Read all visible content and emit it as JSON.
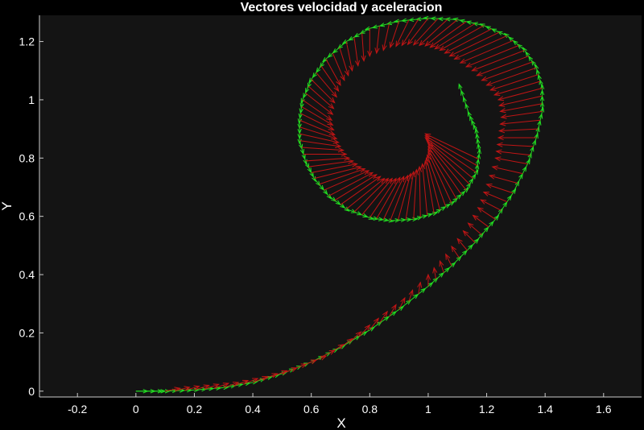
{
  "chart_data": {
    "type": "quiver",
    "title": "Vectores velocidad y aceleracion",
    "xlabel": "X",
    "ylabel": "Y",
    "xlim": [
      -0.33,
      1.73
    ],
    "ylim": [
      -0.02,
      1.29
    ],
    "xticks": [
      -0.2,
      0,
      0.2,
      0.4,
      0.6,
      0.8,
      1,
      1.2,
      1.4,
      1.6
    ],
    "yticks": [
      0,
      0.2,
      0.4,
      0.6,
      0.8,
      1,
      1.2
    ],
    "grid": false,
    "background": "#000000",
    "plot_background": "#141414",
    "series": [
      {
        "kind": "velocity",
        "color": "#22dd22",
        "points": [
          [
            0.0,
            0.0
          ],
          [
            0.1,
            0.0
          ],
          [
            0.2,
            0.004
          ],
          [
            0.3,
            0.012
          ],
          [
            0.4,
            0.03
          ],
          [
            0.5,
            0.06
          ],
          [
            0.6,
            0.1
          ],
          [
            0.7,
            0.15
          ],
          [
            0.8,
            0.21
          ],
          [
            0.9,
            0.28
          ],
          [
            1.0,
            0.36
          ],
          [
            1.08,
            0.43
          ],
          [
            1.16,
            0.51
          ],
          [
            1.23,
            0.59
          ],
          [
            1.29,
            0.68
          ],
          [
            1.34,
            0.78
          ],
          [
            1.37,
            0.87
          ],
          [
            1.39,
            0.96
          ],
          [
            1.39,
            1.04
          ],
          [
            1.37,
            1.11
          ],
          [
            1.33,
            1.17
          ],
          [
            1.27,
            1.22
          ],
          [
            1.19,
            1.255
          ],
          [
            1.1,
            1.275
          ],
          [
            1.0,
            1.28
          ],
          [
            0.9,
            1.27
          ],
          [
            0.8,
            1.245
          ],
          [
            0.72,
            1.2
          ],
          [
            0.65,
            1.14
          ],
          [
            0.6,
            1.07
          ],
          [
            0.57,
            1.0
          ],
          [
            0.56,
            0.93
          ],
          [
            0.56,
            0.86
          ],
          [
            0.58,
            0.79
          ],
          [
            0.61,
            0.73
          ],
          [
            0.66,
            0.67
          ],
          [
            0.72,
            0.625
          ],
          [
            0.8,
            0.595
          ],
          [
            0.87,
            0.585
          ],
          [
            0.95,
            0.59
          ],
          [
            1.02,
            0.61
          ],
          [
            1.08,
            0.645
          ],
          [
            1.13,
            0.69
          ],
          [
            1.165,
            0.75
          ],
          [
            1.175,
            0.82
          ],
          [
            1.165,
            0.89
          ],
          [
            1.14,
            0.95
          ],
          [
            1.11,
            1.04
          ]
        ]
      },
      {
        "kind": "acceleration",
        "color": "#c01515",
        "base": [
          [
            0.1,
            0.0
          ],
          [
            0.2,
            0.004
          ],
          [
            0.3,
            0.012
          ],
          [
            0.4,
            0.03
          ],
          [
            0.5,
            0.06
          ],
          [
            0.6,
            0.1
          ],
          [
            0.7,
            0.15
          ],
          [
            0.8,
            0.21
          ],
          [
            0.9,
            0.28
          ],
          [
            1.0,
            0.36
          ],
          [
            1.08,
            0.43
          ],
          [
            1.16,
            0.51
          ],
          [
            1.23,
            0.59
          ],
          [
            1.29,
            0.68
          ],
          [
            1.34,
            0.78
          ],
          [
            1.37,
            0.87
          ],
          [
            1.39,
            0.96
          ],
          [
            1.39,
            1.04
          ],
          [
            1.37,
            1.11
          ],
          [
            1.33,
            1.17
          ],
          [
            1.27,
            1.22
          ],
          [
            1.19,
            1.255
          ],
          [
            1.1,
            1.275
          ],
          [
            1.0,
            1.28
          ],
          [
            0.9,
            1.27
          ],
          [
            0.8,
            1.245
          ],
          [
            0.72,
            1.2
          ],
          [
            0.65,
            1.14
          ],
          [
            0.6,
            1.07
          ],
          [
            0.57,
            1.0
          ],
          [
            0.56,
            0.93
          ],
          [
            0.56,
            0.86
          ],
          [
            0.58,
            0.79
          ],
          [
            0.61,
            0.73
          ],
          [
            0.66,
            0.67
          ],
          [
            0.72,
            0.625
          ],
          [
            0.8,
            0.595
          ],
          [
            0.87,
            0.585
          ],
          [
            0.95,
            0.59
          ],
          [
            1.02,
            0.61
          ],
          [
            1.08,
            0.645
          ],
          [
            1.13,
            0.69
          ],
          [
            1.165,
            0.75
          ],
          [
            1.175,
            0.82
          ]
        ],
        "tip": [
          [
            0.15,
            0.01
          ],
          [
            0.25,
            0.02
          ],
          [
            0.35,
            0.03
          ],
          [
            0.45,
            0.05
          ],
          [
            0.55,
            0.08
          ],
          [
            0.65,
            0.12
          ],
          [
            0.74,
            0.18
          ],
          [
            0.83,
            0.25
          ],
          [
            0.92,
            0.32
          ],
          [
            1.0,
            0.4
          ],
          [
            1.06,
            0.47
          ],
          [
            1.12,
            0.55
          ],
          [
            1.17,
            0.63
          ],
          [
            1.2,
            0.71
          ],
          [
            1.23,
            0.8
          ],
          [
            1.24,
            0.87
          ],
          [
            1.25,
            0.94
          ],
          [
            1.24,
            1.0
          ],
          [
            1.2,
            1.05
          ],
          [
            1.15,
            1.1
          ],
          [
            1.09,
            1.14
          ],
          [
            1.04,
            1.17
          ],
          [
            0.99,
            1.185
          ],
          [
            0.93,
            1.19
          ],
          [
            0.87,
            1.18
          ],
          [
            0.8,
            1.15
          ],
          [
            0.74,
            1.1
          ],
          [
            0.7,
            1.05
          ],
          [
            0.68,
            0.99
          ],
          [
            0.67,
            0.93
          ],
          [
            0.68,
            0.88
          ],
          [
            0.7,
            0.84
          ],
          [
            0.73,
            0.8
          ],
          [
            0.77,
            0.77
          ],
          [
            0.81,
            0.75
          ],
          [
            0.85,
            0.73
          ],
          [
            0.89,
            0.73
          ],
          [
            0.93,
            0.74
          ],
          [
            0.96,
            0.76
          ],
          [
            0.99,
            0.79
          ],
          [
            1.0,
            0.82
          ],
          [
            1.0,
            0.85
          ],
          [
            0.99,
            0.87
          ],
          [
            0.99,
            0.89
          ]
        ]
      }
    ]
  }
}
